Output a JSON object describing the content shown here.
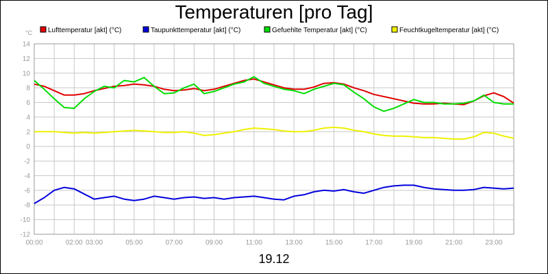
{
  "chart_data": {
    "type": "line",
    "title": "Temperaturen [pro Tag]",
    "y_unit": "°C",
    "xlabel": "19.12",
    "ylim": [
      -12,
      14
    ],
    "yticks": [
      14,
      12,
      10,
      8,
      6,
      4,
      2,
      0,
      -2,
      -4,
      -6,
      -8,
      -10,
      -12
    ],
    "xlim": [
      0,
      24
    ],
    "xticks": [
      {
        "value": 0,
        "label": "00:00"
      },
      {
        "value": 2,
        "label": "02:00"
      },
      {
        "value": 3,
        "label": "03:00"
      },
      {
        "value": 5,
        "label": "05:00"
      },
      {
        "value": 7,
        "label": "07:00"
      },
      {
        "value": 9,
        "label": "09:00"
      },
      {
        "value": 11,
        "label": "11:00"
      },
      {
        "value": 13,
        "label": "13:00"
      },
      {
        "value": 15,
        "label": "15:00"
      },
      {
        "value": 17,
        "label": "17:00"
      },
      {
        "value": 19,
        "label": "19:00"
      },
      {
        "value": 21,
        "label": "21:00"
      },
      {
        "value": 23,
        "label": "23:00"
      }
    ],
    "grid": true,
    "legend_position": "top",
    "x": [
      0,
      0.5,
      1,
      1.5,
      2,
      2.5,
      3,
      3.5,
      4,
      4.5,
      5,
      5.5,
      6,
      6.5,
      7,
      7.5,
      8,
      8.5,
      9,
      9.5,
      10,
      10.5,
      11,
      11.5,
      12,
      12.5,
      13,
      13.5,
      14,
      14.5,
      15,
      15.5,
      16,
      16.5,
      17,
      17.5,
      18,
      18.5,
      19,
      19.5,
      20,
      20.5,
      21,
      21.5,
      22,
      22.5,
      23,
      23.5,
      24
    ],
    "series": [
      {
        "name": "Lufttemperatur [akt] (°C)",
        "color": "#e00000",
        "values": [
          8.5,
          8.2,
          7.6,
          7.0,
          7.0,
          7.2,
          7.6,
          7.9,
          8.2,
          8.3,
          8.5,
          8.4,
          8.2,
          7.8,
          7.6,
          7.7,
          7.9,
          7.6,
          7.8,
          8.2,
          8.6,
          9.0,
          9.2,
          8.8,
          8.4,
          8.0,
          7.8,
          7.8,
          8.1,
          8.6,
          8.7,
          8.5,
          8.0,
          7.6,
          7.1,
          6.8,
          6.5,
          6.2,
          5.9,
          5.8,
          5.8,
          5.9,
          5.8,
          5.7,
          6.2,
          6.9,
          7.3,
          6.8,
          5.9
        ]
      },
      {
        "name": "Taupunkttemperatur [akt] (°C)",
        "color": "#0000dd",
        "values": [
          -7.8,
          -7.0,
          -6.0,
          -5.6,
          -5.8,
          -6.5,
          -7.2,
          -7.0,
          -6.8,
          -7.2,
          -7.4,
          -7.2,
          -6.8,
          -7.0,
          -7.2,
          -7.0,
          -6.9,
          -7.1,
          -7.0,
          -7.2,
          -7.0,
          -6.9,
          -6.8,
          -7.0,
          -7.2,
          -7.3,
          -6.8,
          -6.6,
          -6.2,
          -6.0,
          -6.1,
          -5.9,
          -6.2,
          -6.4,
          -6.0,
          -5.6,
          -5.4,
          -5.3,
          -5.3,
          -5.6,
          -5.8,
          -5.9,
          -6.0,
          -6.0,
          -5.9,
          -5.6,
          -5.7,
          -5.8,
          -5.7
        ]
      },
      {
        "name": "Gefuehlte Temperatur [akt] (°C)",
        "color": "#00dd00",
        "values": [
          9.0,
          7.8,
          6.5,
          5.3,
          5.2,
          6.5,
          7.5,
          8.2,
          8.0,
          9.0,
          8.8,
          9.4,
          8.2,
          7.2,
          7.3,
          8.0,
          8.5,
          7.2,
          7.5,
          8.0,
          8.5,
          8.8,
          9.5,
          8.6,
          8.2,
          7.8,
          7.6,
          7.2,
          7.8,
          8.2,
          8.6,
          8.4,
          7.4,
          6.5,
          5.4,
          4.8,
          5.2,
          5.8,
          6.4,
          6.0,
          6.0,
          5.8,
          5.8,
          5.9,
          6.2,
          7.0,
          6.0,
          5.8,
          5.8
        ]
      },
      {
        "name": "Feuchtkugeltemperatur [akt] (°C)",
        "color": "#f0f000",
        "values": [
          2.0,
          2.0,
          2.0,
          1.9,
          1.8,
          1.9,
          1.8,
          1.9,
          2.0,
          2.1,
          2.2,
          2.1,
          2.0,
          1.9,
          1.9,
          2.0,
          1.8,
          1.5,
          1.6,
          1.8,
          2.0,
          2.3,
          2.5,
          2.4,
          2.3,
          2.1,
          2.0,
          2.0,
          2.2,
          2.5,
          2.6,
          2.5,
          2.2,
          2.0,
          1.7,
          1.5,
          1.4,
          1.4,
          1.3,
          1.2,
          1.2,
          1.1,
          1.0,
          1.0,
          1.3,
          1.9,
          1.8,
          1.4,
          1.1
        ]
      }
    ]
  }
}
